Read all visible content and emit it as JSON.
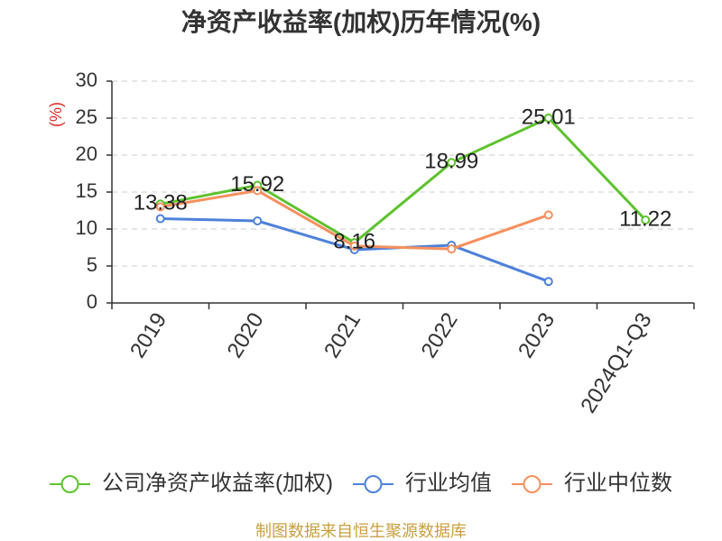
{
  "source": "制图数据来自恒生聚源数据库",
  "source_color": "#c8a040",
  "ylabel_color": "#e0302c",
  "chart_data": {
    "type": "line",
    "title": "净资产收益率(加权)历年情况(%)",
    "ylabel": "(%)",
    "categories": [
      "2019",
      "2020",
      "2021",
      "2022",
      "2023",
      "2024Q1-Q3"
    ],
    "ylim": [
      0,
      30
    ],
    "yticks": [
      0,
      5,
      10,
      15,
      20,
      25,
      30
    ],
    "grid": true,
    "legend_position": "bottom",
    "series": [
      {
        "name": "公司净资产收益率(加权)",
        "values": [
          13.38,
          15.92,
          8.16,
          18.99,
          25.01,
          11.22
        ],
        "color": "#5ec22f",
        "show_labels": true
      },
      {
        "name": "行业均值",
        "values": [
          11.4,
          11.1,
          7.2,
          7.8,
          2.9,
          null
        ],
        "color": "#4e81d9",
        "show_labels": false
      },
      {
        "name": "行业中位数",
        "values": [
          13.0,
          15.2,
          7.7,
          7.3,
          11.9,
          null
        ],
        "color": "#f6905e",
        "show_labels": false
      }
    ]
  }
}
